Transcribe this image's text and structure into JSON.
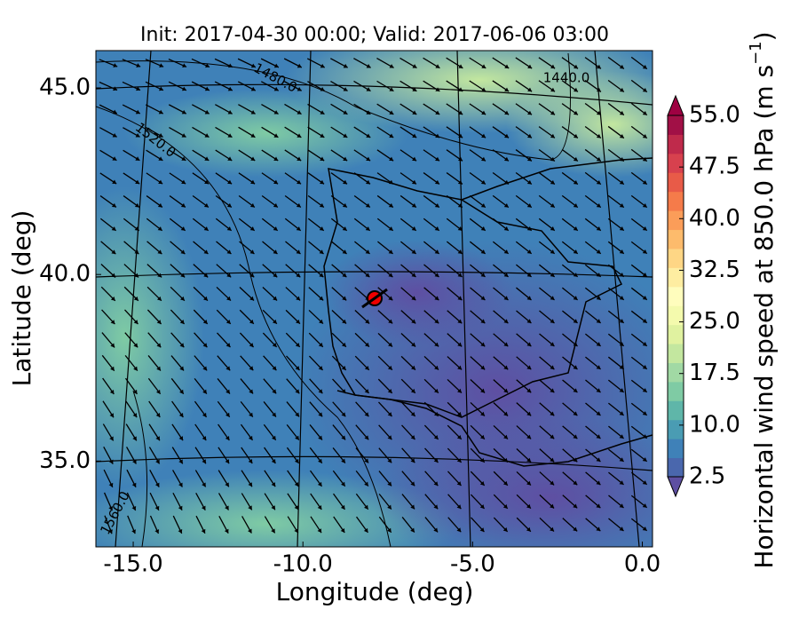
{
  "title": "Init: 2017-04-30 00:00; Valid: 2017-06-06 03:00",
  "x_axis": {
    "label": "Longitude (deg)",
    "lim": [
      -16.1,
      0.3
    ],
    "ticks": [
      {
        "value": -15,
        "label": "-15.0"
      },
      {
        "value": -10,
        "label": "-10.0"
      },
      {
        "value": -5,
        "label": "-5.0"
      },
      {
        "value": 0,
        "label": "0.0"
      }
    ]
  },
  "y_axis": {
    "label": "Latitude (deg)",
    "lim": [
      32.7,
      46.0
    ],
    "ticks": [
      {
        "value": 35,
        "label": "35.0"
      },
      {
        "value": 40,
        "label": "40.0"
      },
      {
        "value": 45,
        "label": "45.0"
      }
    ]
  },
  "colorbar": {
    "label_parts": [
      "Horizontal wind speed at 850.0 hPa (m s",
      "−1",
      ")"
    ],
    "lim": [
      2.5,
      55
    ],
    "ticks": [
      {
        "value": 2.5,
        "label": "2.5"
      },
      {
        "value": 10,
        "label": "10.0"
      },
      {
        "value": 17.5,
        "label": "17.5"
      },
      {
        "value": 25,
        "label": "25.0"
      },
      {
        "value": 32.5,
        "label": "32.5"
      },
      {
        "value": 40,
        "label": "40.0"
      },
      {
        "value": 47.5,
        "label": "47.5"
      },
      {
        "value": 55,
        "label": "55.0"
      }
    ],
    "colors": [
      "#5e4fa2",
      "#4a67ad",
      "#3f81b8",
      "#4a9cb3",
      "#5fb6a9",
      "#7fcba4",
      "#a1d9a4",
      "#c3e79f",
      "#e0f2a0",
      "#f4faad",
      "#fffdbd",
      "#feeda1",
      "#fed685",
      "#fdbb6c",
      "#fb9d59",
      "#f57b4a",
      "#e85b48",
      "#d7414e",
      "#bf2a4b",
      "#a11046",
      "#9e0142"
    ]
  },
  "contour_labels": [
    "1480.0",
    "1440.0",
    "1520.0",
    "1560.0"
  ]
}
